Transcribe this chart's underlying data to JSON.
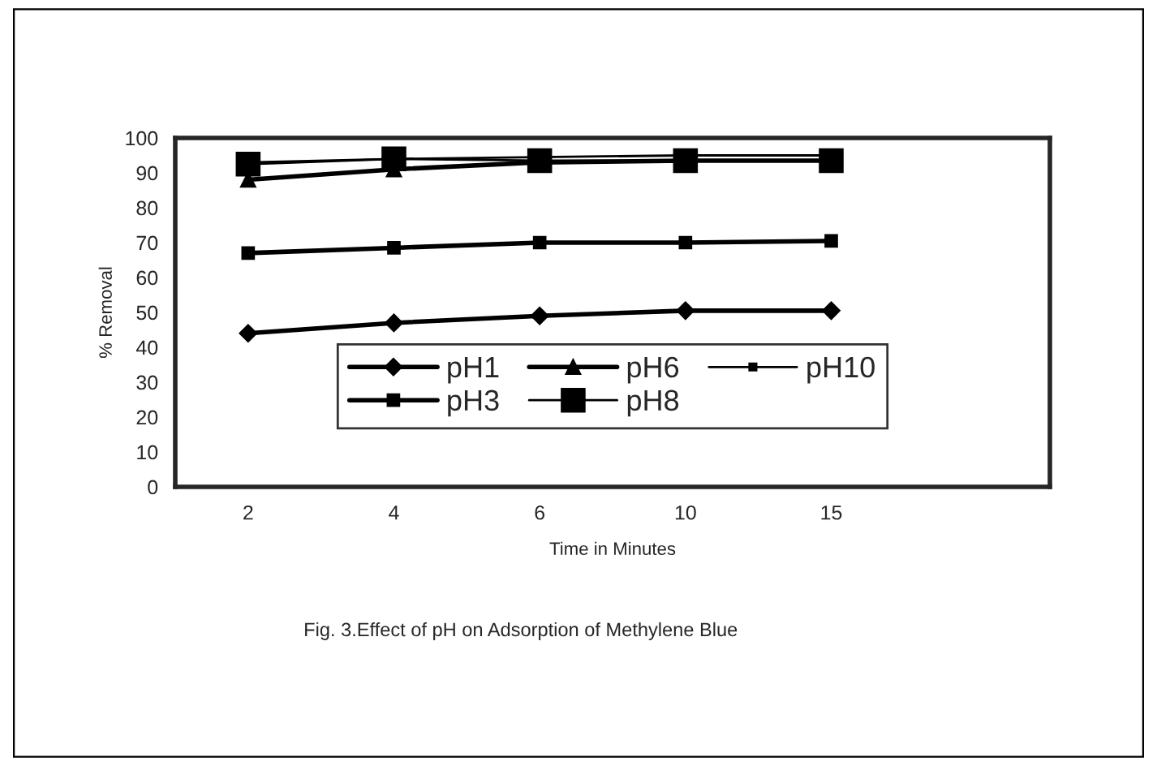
{
  "chart_data": {
    "type": "line",
    "xlabel": "Time in Minutes",
    "ylabel": "% Removal",
    "categories": [
      "2",
      "4",
      "6",
      "10",
      "15",
      null
    ],
    "ylim": [
      0,
      100
    ],
    "yticks": [
      0,
      10,
      20,
      30,
      40,
      50,
      60,
      70,
      80,
      90,
      100
    ],
    "grid": false,
    "legend": "bottom",
    "line_style": "solid",
    "series": [
      {
        "name": "pH1",
        "color": "#000000",
        "marker": "diamond",
        "values": [
          44,
          47,
          49,
          50.5,
          50.5,
          null
        ]
      },
      {
        "name": "pH3",
        "color": "#000000",
        "marker": "square",
        "values": [
          67,
          68.5,
          70,
          70,
          70.5,
          null
        ]
      },
      {
        "name": "pH6",
        "color": "#000000",
        "marker": "triangle",
        "values": [
          88,
          91,
          93,
          93.5,
          93.5,
          null
        ]
      },
      {
        "name": "pH8",
        "color": "#000000",
        "marker": "square",
        "values": [
          92.5,
          94,
          93.5,
          93.5,
          93.5,
          null
        ]
      },
      {
        "name": "pH10",
        "color": "#000000",
        "marker": "square",
        "values": [
          93,
          94,
          94.5,
          95,
          95,
          null
        ]
      }
    ],
    "annotations": [
      "Fig. 3.Effect of pH on Adsorption of Methylene Blue"
    ]
  }
}
